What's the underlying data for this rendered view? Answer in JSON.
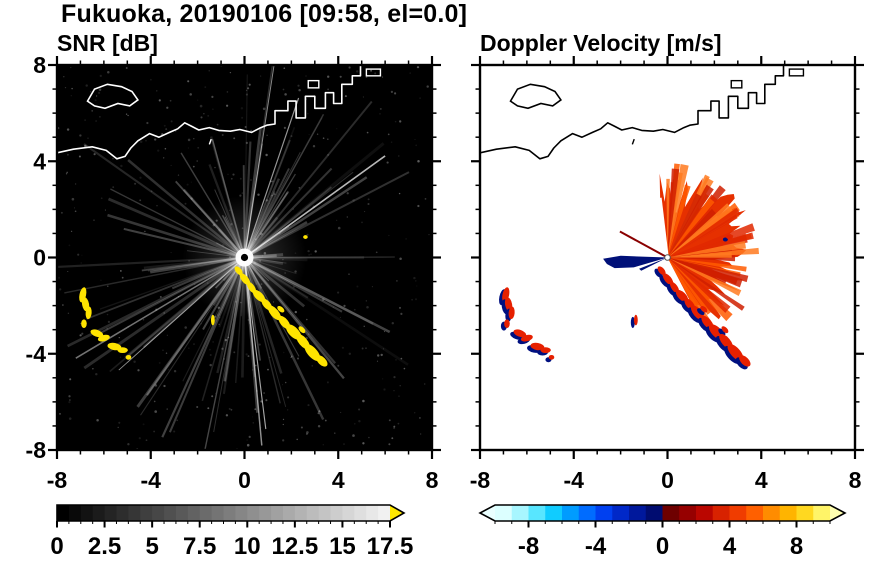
{
  "header": {
    "title": "Fukuoka, 20190106 [09:58, el=0.0]"
  },
  "panels": {
    "snr": {
      "subtitle": "SNR [dB]"
    },
    "vel": {
      "subtitle": "Doppler Velocity [m/s]"
    }
  },
  "coastline": {
    "main": [
      [
        -8,
        4.35
      ],
      [
        -7.3,
        4.5
      ],
      [
        -6.5,
        4.6
      ],
      [
        -5.9,
        4.45
      ],
      [
        -5.45,
        4.1
      ],
      [
        -5.1,
        4.2
      ],
      [
        -4.85,
        4.55
      ],
      [
        -4.55,
        4.85
      ],
      [
        -4.05,
        5.15
      ],
      [
        -3.65,
        5.0
      ],
      [
        -3.2,
        5.2
      ],
      [
        -2.85,
        5.35
      ],
      [
        -2.55,
        5.6
      ],
      [
        -2.25,
        5.45
      ],
      [
        -1.95,
        5.3
      ],
      [
        -1.5,
        5.4
      ],
      [
        -1.1,
        5.28
      ],
      [
        -0.6,
        5.25
      ],
      [
        -0.2,
        5.32
      ],
      [
        0.3,
        5.2
      ],
      [
        0.7,
        5.4
      ],
      [
        0.95,
        5.5
      ],
      [
        1.3,
        5.55
      ],
      [
        1.3,
        6.1
      ],
      [
        1.85,
        6.1
      ],
      [
        1.85,
        6.5
      ],
      [
        2.2,
        6.5
      ],
      [
        2.2,
        5.8
      ],
      [
        2.6,
        5.8
      ],
      [
        2.6,
        6.7
      ],
      [
        3.0,
        6.7
      ],
      [
        3.0,
        6.2
      ],
      [
        3.45,
        6.2
      ],
      [
        3.45,
        6.85
      ],
      [
        3.8,
        6.85
      ],
      [
        3.8,
        6.4
      ],
      [
        4.15,
        6.4
      ],
      [
        4.15,
        7.2
      ],
      [
        4.6,
        7.2
      ],
      [
        4.6,
        7.55
      ],
      [
        4.95,
        7.55
      ],
      [
        4.95,
        8.0
      ]
    ],
    "island": [
      [
        -6.7,
        6.5
      ],
      [
        -6.4,
        7.0
      ],
      [
        -5.85,
        7.2
      ],
      [
        -5.25,
        7.1
      ],
      [
        -4.8,
        6.9
      ],
      [
        -4.55,
        6.55
      ],
      [
        -4.9,
        6.3
      ],
      [
        -5.4,
        6.4
      ],
      [
        -5.95,
        6.2
      ],
      [
        -6.4,
        6.3
      ]
    ],
    "blocks": [
      [
        2.72,
        7.05,
        0.45,
        0.3
      ],
      [
        5.2,
        7.55,
        0.6,
        0.28
      ]
    ],
    "dashes": [
      [
        [
          -1.5,
          4.7
        ],
        [
          -1.42,
          4.92
        ]
      ]
    ]
  },
  "chart_data": [
    {
      "type": "heatmap",
      "title": "SNR [dB]",
      "xlabel": "",
      "ylabel": "",
      "xlim": [
        -8,
        8
      ],
      "ylim": [
        -8,
        8
      ],
      "x_ticks": [
        -8,
        -4,
        0,
        4,
        8
      ],
      "x_tick_labels": [
        "-8",
        "-4",
        "0",
        "4",
        "8"
      ],
      "y_ticks": [
        8,
        4,
        0,
        -4,
        -8
      ],
      "y_tick_labels": [
        "8",
        "4",
        "0",
        "-4",
        "-8"
      ],
      "minor_tick_step": 1,
      "background_color": "#000000",
      "coast_color": "#ffffff",
      "radar_center": [
        0,
        0
      ],
      "streaks": {
        "count": 110,
        "bright_count": 7,
        "seed": 7,
        "color": "#ffffff"
      },
      "noise": {
        "count": 420,
        "seed": 13
      },
      "echo_color": "#ffe400",
      "echoes": [
        [
          -0.25,
          -0.55,
          0.22,
          0.12,
          50
        ],
        [
          0.02,
          -0.9,
          0.3,
          0.14,
          50
        ],
        [
          0.3,
          -1.25,
          0.28,
          0.13,
          55
        ],
        [
          0.62,
          -1.6,
          0.33,
          0.16,
          45
        ],
        [
          0.95,
          -1.95,
          0.3,
          0.15,
          50
        ],
        [
          1.28,
          -2.3,
          0.38,
          0.17,
          50
        ],
        [
          1.55,
          -2.15,
          0.18,
          0.1,
          40
        ],
        [
          1.7,
          -2.7,
          0.34,
          0.16,
          50
        ],
        [
          2.1,
          -3.1,
          0.42,
          0.2,
          45
        ],
        [
          2.45,
          -3.0,
          0.18,
          0.1,
          45
        ],
        [
          2.5,
          -3.5,
          0.4,
          0.18,
          50
        ],
        [
          2.9,
          -3.95,
          0.45,
          0.2,
          48
        ],
        [
          3.3,
          -4.3,
          0.3,
          0.16,
          45
        ],
        [
          -6.9,
          -1.55,
          0.14,
          0.32,
          12
        ],
        [
          -6.78,
          -1.95,
          0.15,
          0.3,
          -10
        ],
        [
          -6.65,
          -2.3,
          0.13,
          0.26,
          5
        ],
        [
          -6.85,
          -2.75,
          0.12,
          0.18,
          0
        ],
        [
          -6.3,
          -3.15,
          0.28,
          0.14,
          20
        ],
        [
          -6.0,
          -3.35,
          0.26,
          0.13,
          -15
        ],
        [
          -5.55,
          -3.7,
          0.3,
          0.15,
          10
        ],
        [
          -5.2,
          -3.85,
          0.22,
          0.12,
          0
        ],
        [
          -4.95,
          -4.15,
          0.12,
          0.1,
          0
        ],
        [
          -1.35,
          -2.6,
          0.08,
          0.22,
          0
        ],
        [
          2.6,
          0.85,
          0.1,
          0.08,
          0
        ]
      ],
      "colorbar": {
        "min": 0,
        "max": 17.5,
        "segment_step": 0.625,
        "scale": "grayscale",
        "over_color": "#ffe800",
        "ticks": [
          0,
          2.5,
          5,
          7.5,
          10,
          12.5,
          15,
          17.5
        ],
        "tick_labels": [
          "0",
          "2.5",
          "5",
          "7.5",
          "10",
          "12.5",
          "15",
          "17.5"
        ]
      }
    },
    {
      "type": "heatmap",
      "title": "Doppler Velocity [m/s]",
      "xlabel": "",
      "ylabel": "",
      "xlim": [
        -8,
        8
      ],
      "ylim": [
        -8,
        8
      ],
      "x_ticks": [
        -8,
        -4,
        0,
        4,
        8
      ],
      "x_tick_labels": [
        "-8",
        "-4",
        "0",
        "4",
        "8"
      ],
      "y_ticks": [
        8,
        4,
        0,
        -4,
        -8
      ],
      "y_tick_labels": [
        "8",
        "4",
        "0",
        "-4",
        "-8"
      ],
      "minor_tick_step": 1,
      "background_color": "#ffffff",
      "coast_color": "#000000",
      "radar_center": [
        0,
        0
      ],
      "fan": {
        "angle_start": -62,
        "angle_end": 100,
        "base_radius": 2.55,
        "jitter": 1.7,
        "seed": 21,
        "fill": "#e63000",
        "spike_colors": [
          "#ff5a00",
          "#cf1e00",
          "#ff7a20",
          "#e02800"
        ],
        "spike_count": 48
      },
      "approach_wedge": {
        "color": "#001078",
        "points": [
          [
            178,
            2.0
          ],
          [
            181,
            2.75
          ],
          [
            186,
            2.6
          ],
          [
            191,
            2.3
          ],
          [
            196,
            1.5
          ]
        ],
        "extra_spike": [
          [
            201,
            1.3
          ],
          [
            206,
            1.25
          ]
        ]
      },
      "thin_ray": {
        "angle_deg": 152,
        "length": 2.3,
        "color": "#8a0000"
      },
      "gap_ray": {
        "angle_deg": 97,
        "length": 2.5,
        "color": "#ffffff"
      },
      "echo_positive_color": "#e62000",
      "echo_negative_color": "#001080",
      "echoes_note": "red/navy clutter echoes at same locations as SNR echoes",
      "colorbar": {
        "min": -10,
        "max": 10,
        "ticks": [
          -8,
          -4,
          0,
          4,
          8
        ],
        "tick_labels": [
          "-8",
          "-4",
          "0",
          "4",
          "8"
        ],
        "under_color": "#eaffff",
        "over_color": "#ffffb0",
        "segment_colors": [
          "#dcffff",
          "#a8f6ff",
          "#58e6ff",
          "#10ccff",
          "#009cff",
          "#006cff",
          "#0040f0",
          "#0028c8",
          "#00189c",
          "#000c70",
          "#6e0000",
          "#960000",
          "#ba0600",
          "#d82200",
          "#f03c00",
          "#ff6000",
          "#ff8c00",
          "#ffb400",
          "#ffd820",
          "#fff468"
        ]
      }
    }
  ]
}
